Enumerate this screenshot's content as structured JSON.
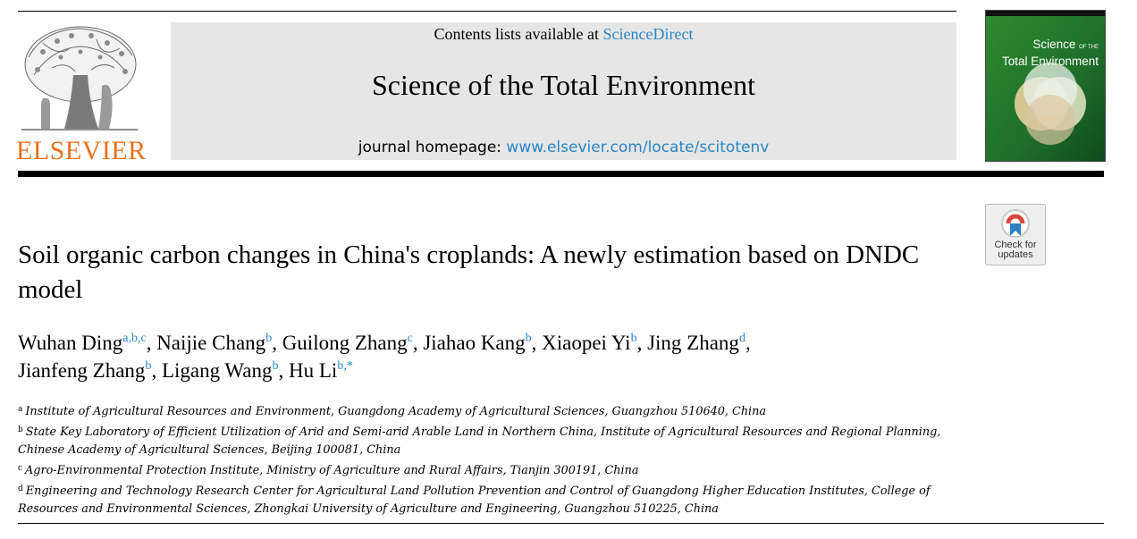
{
  "publisher": {
    "name": "ELSEVIER",
    "brand_color": "#e9711c"
  },
  "banner": {
    "contents_prefix": "Contents lists available at ",
    "contents_link": "ScienceDirect",
    "journal_title": "Science of the Total Environment",
    "homepage_prefix": "journal homepage: ",
    "homepage_url": "www.elsevier.com/locate/scitotenv",
    "background": "#e6e6e6",
    "link_color": "#2a86c6"
  },
  "cover": {
    "line1": "Science",
    "line1_small": "OF THE",
    "line2": "Total Environment"
  },
  "check_updates": {
    "line1": "Check for",
    "line2": "updates"
  },
  "article": {
    "title": "Soil organic carbon changes in China's croplands: A newly estimation based on DNDC model",
    "authors": [
      {
        "name": "Wuhan Ding",
        "affs": "a,b,c"
      },
      {
        "name": "Naijie Chang",
        "affs": "b"
      },
      {
        "name": "Guilong Zhang",
        "affs": "c"
      },
      {
        "name": "Jiahao Kang",
        "affs": "b"
      },
      {
        "name": "Xiaopei Yi",
        "affs": "b"
      },
      {
        "name": "Jing Zhang",
        "affs": "d"
      },
      {
        "name": "Jianfeng Zhang",
        "affs": "b"
      },
      {
        "name": "Ligang Wang",
        "affs": "b"
      },
      {
        "name": "Hu Li",
        "affs": "b,*"
      }
    ],
    "affiliations": [
      {
        "key": "a",
        "text": "Institute of Agricultural Resources and Environment, Guangdong Academy of Agricultural Sciences, Guangzhou 510640, China"
      },
      {
        "key": "b",
        "text": "State Key Laboratory of Efficient Utilization of Arid and Semi-arid Arable Land in Northern China, Institute of Agricultural Resources and Regional Planning, Chinese Academy of Agricultural Sciences, Beijing 100081, China"
      },
      {
        "key": "c",
        "text": "Agro-Environmental Protection Institute, Ministry of Agriculture and Rural Affairs, Tianjin 300191, China"
      },
      {
        "key": "d",
        "text": "Engineering and Technology Research Center for Agricultural Land Pollution Prevention and Control of Guangdong Higher Education Institutes, College of Resources and Environmental Sciences, Zhongkai University of Agriculture and Engineering, Guangzhou 510225, China"
      }
    ]
  }
}
